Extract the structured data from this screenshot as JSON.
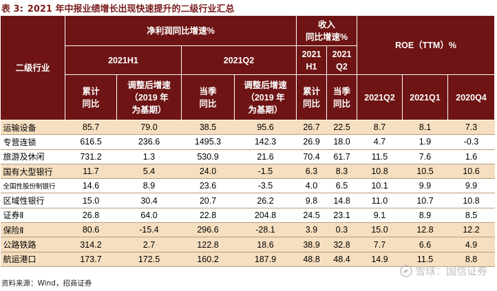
{
  "title": {
    "label": "表 3:",
    "text": "2021 年中报业绩增长出现快速提升的二级行业汇总"
  },
  "header": {
    "industry": "二级行业",
    "net_profit_group": "净利润同比增速%",
    "revenue_group": [
      "收入",
      "同比增速%"
    ],
    "roe_group": "ROE（TTM）%",
    "period_h1": "2021H1",
    "period_q2": "2021Q2",
    "rev_h1": [
      "2021",
      "H1"
    ],
    "rev_q2": [
      "2021",
      "Q2"
    ],
    "col_cum": [
      "累计",
      "同比"
    ],
    "col_adj": [
      "调整后增速",
      "（2019 年",
      "为基期）"
    ],
    "col_season": [
      "当季",
      "同比"
    ],
    "col_rev_cum": [
      "累计",
      "同比"
    ],
    "col_rev_season": [
      "当季",
      "同比"
    ],
    "roe_cols": [
      "2021Q2",
      "2021Q1",
      "2020Q4"
    ]
  },
  "rows": [
    {
      "name": "运输设备",
      "values": [
        "85.7",
        "79.0",
        "38.5",
        "95.6",
        "26.7",
        "22.5",
        "8.7",
        "8.1",
        "7.3"
      ]
    },
    {
      "name": "专营连锁",
      "values": [
        "616.5",
        "236.6",
        "1495.3",
        "142.3",
        "26.9",
        "18.0",
        "4.7",
        "1.9",
        "-0.3"
      ]
    },
    {
      "name": "旅游及休闲",
      "values": [
        "731.2",
        "1.3",
        "530.9",
        "21.6",
        "70.4",
        "61.7",
        "11.5",
        "7.6",
        "1.6"
      ]
    },
    {
      "name": "国有大型银行",
      "values": [
        "11.7",
        "5.4",
        "24.0",
        "-1.5",
        "6.3",
        "8.3",
        "10.8",
        "10.5",
        "10.6"
      ]
    },
    {
      "name": "全国性股份制银行",
      "values": [
        "14.6",
        "8.9",
        "23.6",
        "-3.5",
        "4.0",
        "6.5",
        "10.1",
        "9.9",
        "9.9"
      ]
    },
    {
      "name": "区域性银行",
      "values": [
        "15.0",
        "30.4",
        "20.7",
        "26.2",
        "9.8",
        "14.8",
        "11.0",
        "10.7",
        "10.8"
      ]
    },
    {
      "name": "证券Ⅱ",
      "values": [
        "26.8",
        "64.0",
        "22.8",
        "204.8",
        "24.5",
        "23.1",
        "9.1",
        "8.9",
        "8.5"
      ]
    },
    {
      "name": "保险Ⅱ",
      "values": [
        "80.6",
        "-15.4",
        "296.6",
        "-28.1",
        "3.9",
        "0.3",
        "15.0",
        "12.8",
        "12.2"
      ]
    },
    {
      "name": "公路铁路",
      "values": [
        "314.2",
        "2.7",
        "122.8",
        "18.6",
        "38.9",
        "32.8",
        "7.7",
        "6.6",
        "4.9"
      ]
    },
    {
      "name": "航运港口",
      "values": [
        "173.7",
        "172.5",
        "160.2",
        "187.9",
        "48.8",
        "48.4",
        "14.9",
        "11.5",
        "8.8"
      ]
    }
  ],
  "footer": "资料来源：Wind，招商证券",
  "watermark": "雪球：国信证券",
  "colors": {
    "header_bg": "#6e1414",
    "stripe": "#f6dfc0",
    "title": "#7a1d1d"
  }
}
